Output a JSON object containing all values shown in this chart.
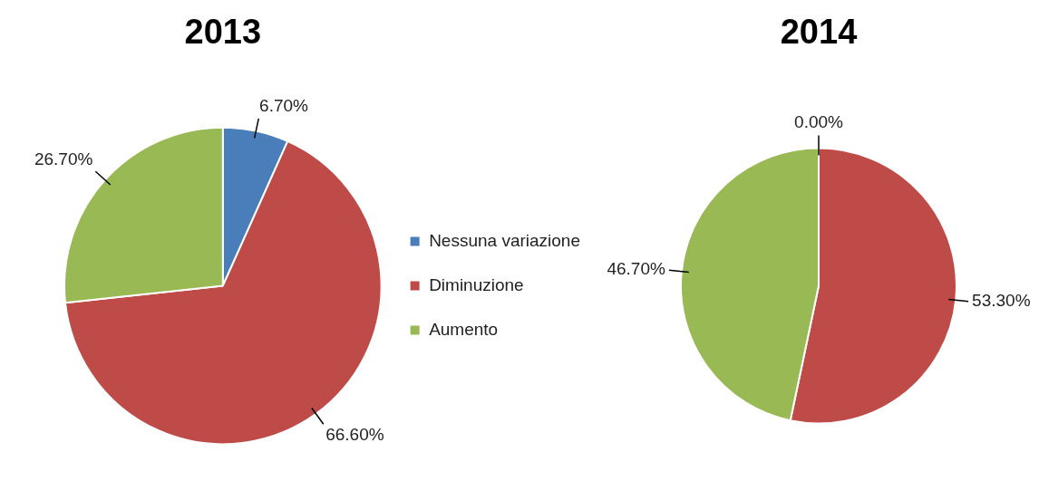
{
  "chart_data": [
    {
      "type": "pie",
      "title": "2013",
      "categories": [
        "Nessuna variazione",
        "Diminuzione",
        "Aumento"
      ],
      "values": [
        6.7,
        66.6,
        26.7
      ],
      "colors": [
        "#4a7ebb",
        "#be4b48",
        "#98b954"
      ],
      "value_labels": [
        "6.70%",
        "66.60%",
        "26.70%"
      ],
      "legend": "right"
    },
    {
      "type": "pie",
      "title": "2014",
      "categories": [
        null,
        null,
        null
      ],
      "values": [
        0,
        53.3,
        46.7
      ],
      "colors": [
        "#4a7ebb",
        "#be4b48",
        "#98b954"
      ],
      "value_labels": [
        "0.00%",
        "53.30%",
        "46.70%"
      ]
    }
  ]
}
